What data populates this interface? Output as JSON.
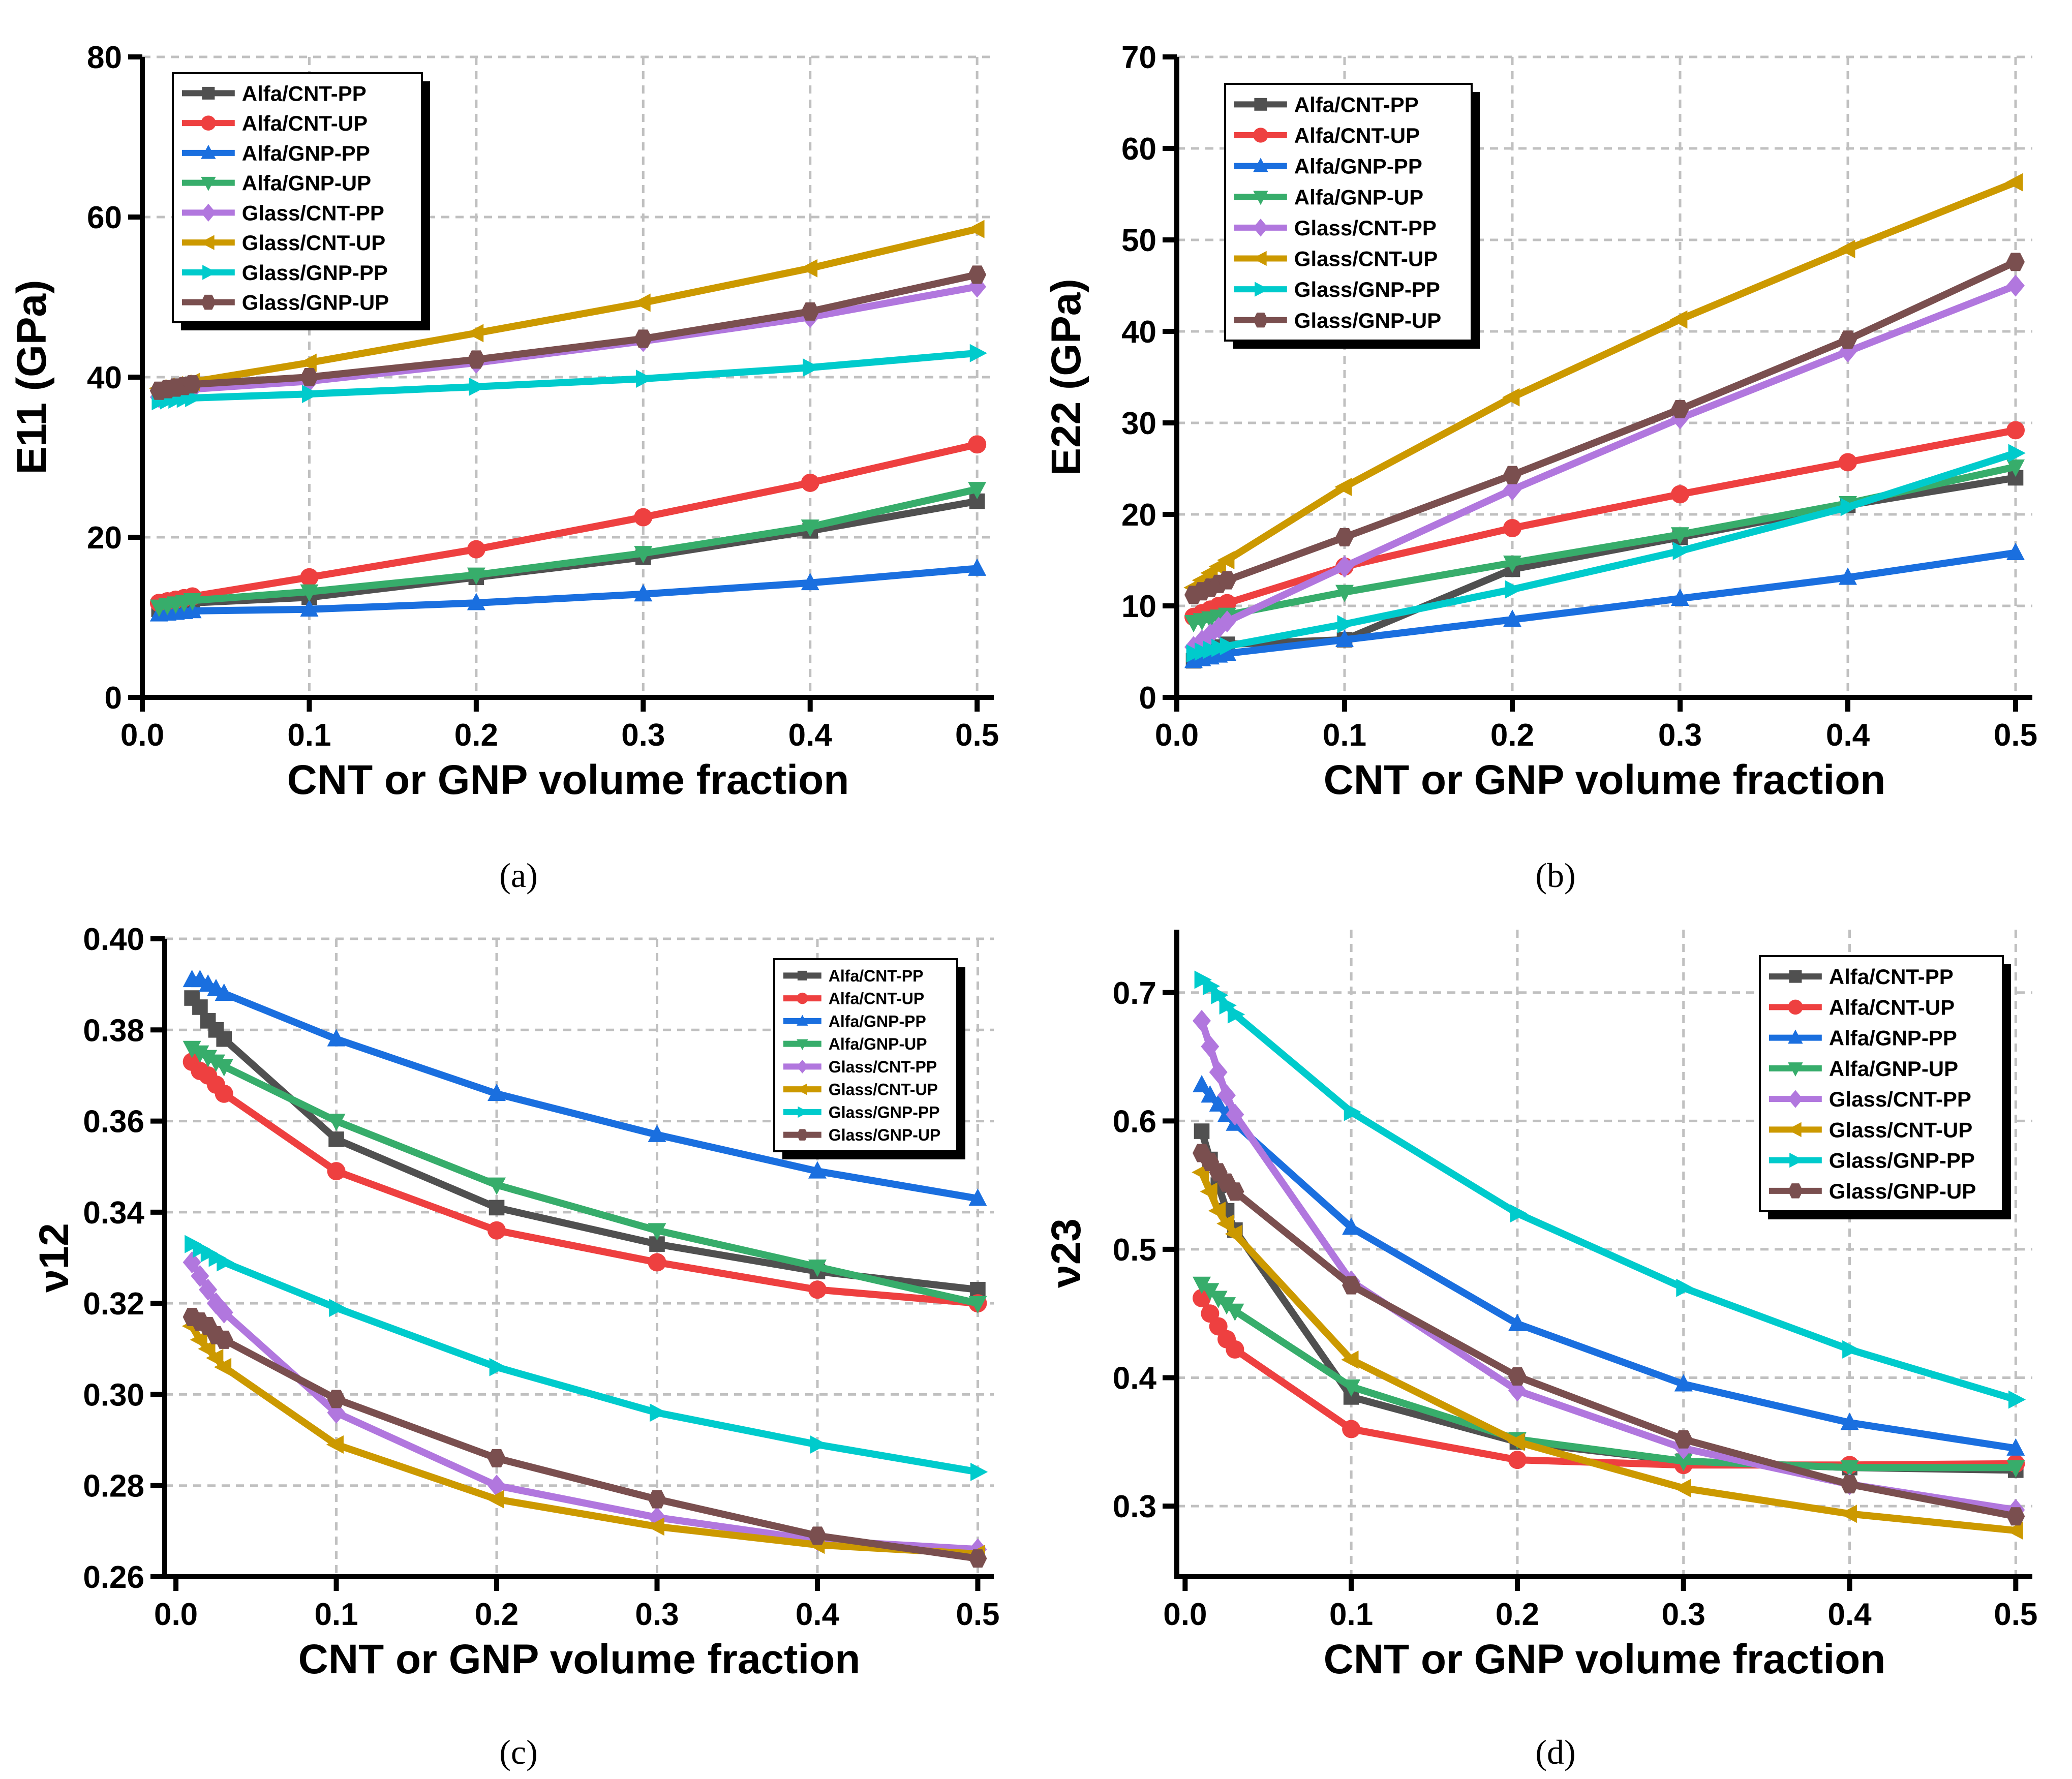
{
  "series_style": {
    "names": [
      "Alfa/CNT-PP",
      "Alfa/CNT-UP",
      "Alfa/GNP-PP",
      "Alfa/GNP-UP",
      "Glass/CNT-PP",
      "Glass/CNT-UP",
      "Glass/GNP-PP",
      "Glass/GNP-UP"
    ],
    "colors": [
      "#505050",
      "#ee4040",
      "#1a6fdf",
      "#37ad6b",
      "#b177de",
      "#cc9900",
      "#00cbcc",
      "#7a4f4f"
    ],
    "markers": [
      "square",
      "circle",
      "triangle-up",
      "triangle-down",
      "diamond",
      "triangle-left",
      "triangle-right",
      "hexagon"
    ]
  },
  "chart_data": [
    {
      "type": "line",
      "caption": "(a)",
      "xlabel": "CNT or GNP volume fraction",
      "ylabel": "E11 (GPa)",
      "xlim": [
        0,
        0.51
      ],
      "ylim": [
        0,
        80
      ],
      "grid": true,
      "legend": "top-left",
      "xticks": [
        "0.0",
        "0.1",
        "0.2",
        "0.3",
        "0.4",
        "0.5"
      ],
      "yticks": [
        "0",
        "20",
        "40",
        "60",
        "80"
      ],
      "x": [
        0.01,
        0.015,
        0.02,
        0.025,
        0.03,
        0.1,
        0.2,
        0.3,
        0.4,
        0.5
      ],
      "series": [
        {
          "name": "Alfa/CNT-PP",
          "values": [
            11,
            11.2,
            11.4,
            11.6,
            11.8,
            12.5,
            15,
            17.5,
            20.8,
            24.5
          ]
        },
        {
          "name": "Alfa/CNT-UP",
          "values": [
            11.8,
            12,
            12.2,
            12.4,
            12.6,
            15,
            18.5,
            22.5,
            26.8,
            31.6
          ]
        },
        {
          "name": "Alfa/GNP-PP",
          "values": [
            10.4,
            10.5,
            10.6,
            10.7,
            10.8,
            11,
            11.8,
            12.9,
            14.3,
            16.1
          ]
        },
        {
          "name": "Alfa/GNP-UP",
          "values": [
            11.3,
            11.5,
            11.7,
            11.9,
            12.1,
            13.2,
            15.3,
            18,
            21.3,
            26
          ]
        },
        {
          "name": "Glass/CNT-PP",
          "values": [
            37.5,
            37.8,
            38,
            38.3,
            38.5,
            39.5,
            41.8,
            44.5,
            47.5,
            51.3
          ]
        },
        {
          "name": "Glass/CNT-UP",
          "values": [
            38.6,
            38.8,
            39,
            39.2,
            39.4,
            41.8,
            45.5,
            49.3,
            53.6,
            58.5
          ]
        },
        {
          "name": "Glass/GNP-PP",
          "values": [
            37,
            37.1,
            37.2,
            37.3,
            37.4,
            37.9,
            38.8,
            39.8,
            41.2,
            43
          ]
        },
        {
          "name": "Glass/GNP-UP",
          "values": [
            38.3,
            38.5,
            38.7,
            38.9,
            39.1,
            40,
            42.2,
            44.8,
            48.2,
            52.8
          ]
        }
      ]
    },
    {
      "type": "line",
      "caption": "(b)",
      "xlabel": "CNT or GNP volume fraction",
      "ylabel": "E22 (GPa)",
      "xlim": [
        0,
        0.51
      ],
      "ylim": [
        0,
        70
      ],
      "grid": true,
      "legend": "top-left",
      "xticks": [
        "0.0",
        "0.1",
        "0.2",
        "0.3",
        "0.4",
        "0.5"
      ],
      "yticks": [
        "0",
        "10",
        "20",
        "30",
        "40",
        "50",
        "60",
        "70"
      ],
      "x": [
        0.01,
        0.015,
        0.02,
        0.025,
        0.03,
        0.1,
        0.2,
        0.3,
        0.4,
        0.5
      ],
      "series": [
        {
          "name": "Alfa/CNT-PP",
          "values": [
            4,
            4.5,
            5,
            5.5,
            5.8,
            6.3,
            14,
            17.5,
            21,
            24
          ]
        },
        {
          "name": "Alfa/CNT-UP",
          "values": [
            8.8,
            9.2,
            9.6,
            10,
            10.3,
            14.3,
            18.5,
            22.2,
            25.7,
            29.2
          ]
        },
        {
          "name": "Alfa/GNP-PP",
          "values": [
            4,
            4.2,
            4.4,
            4.6,
            4.8,
            6.3,
            8.5,
            10.8,
            13.1,
            15.8
          ]
        },
        {
          "name": "Alfa/GNP-UP",
          "values": [
            8.2,
            8.4,
            8.6,
            8.8,
            9,
            11.5,
            14.7,
            17.8,
            21.2,
            25.2
          ]
        },
        {
          "name": "Glass/CNT-PP",
          "values": [
            5.5,
            6.2,
            6.9,
            7.6,
            8.3,
            14.3,
            22.7,
            30.5,
            37.8,
            45
          ]
        },
        {
          "name": "Glass/CNT-UP",
          "values": [
            12,
            12.8,
            13.6,
            14.3,
            15,
            23,
            32.8,
            41.3,
            49,
            56.3
          ]
        },
        {
          "name": "Glass/GNP-PP",
          "values": [
            4.8,
            5,
            5.2,
            5.4,
            5.6,
            8,
            11.8,
            16,
            20.8,
            26.7
          ]
        },
        {
          "name": "Glass/GNP-UP",
          "values": [
            11.2,
            11.6,
            12,
            12.4,
            12.8,
            17.5,
            24.3,
            31.5,
            39.1,
            47.6
          ]
        }
      ]
    },
    {
      "type": "line",
      "caption": "(c)",
      "xlabel": "CNT or GNP volume fraction",
      "ylabel": "ν12",
      "xlim": [
        -0.007,
        0.51
      ],
      "ylim": [
        0.26,
        0.4
      ],
      "grid": true,
      "legend": "top-right",
      "xticks": [
        "0.0",
        "0.1",
        "0.2",
        "0.3",
        "0.4",
        "0.5"
      ],
      "yticks": [
        "0.26",
        "0.28",
        "0.30",
        "0.32",
        "0.34",
        "0.36",
        "0.38",
        "0.40"
      ],
      "x": [
        0.01,
        0.015,
        0.02,
        0.025,
        0.03,
        0.1,
        0.2,
        0.3,
        0.4,
        0.5
      ],
      "series": [
        {
          "name": "Alfa/CNT-PP",
          "values": [
            0.387,
            0.385,
            0.382,
            0.38,
            0.378,
            0.356,
            0.341,
            0.333,
            0.327,
            0.323
          ]
        },
        {
          "name": "Alfa/CNT-UP",
          "values": [
            0.373,
            0.371,
            0.37,
            0.368,
            0.366,
            0.349,
            0.336,
            0.329,
            0.323,
            0.32
          ]
        },
        {
          "name": "Alfa/GNP-PP",
          "values": [
            0.391,
            0.391,
            0.39,
            0.389,
            0.388,
            0.378,
            0.366,
            0.357,
            0.349,
            0.343
          ]
        },
        {
          "name": "Alfa/GNP-UP",
          "values": [
            0.376,
            0.375,
            0.374,
            0.373,
            0.372,
            0.36,
            0.346,
            0.336,
            0.328,
            0.32
          ]
        },
        {
          "name": "Glass/CNT-PP",
          "values": [
            0.329,
            0.326,
            0.323,
            0.32,
            0.318,
            0.296,
            0.28,
            0.273,
            0.268,
            0.266
          ]
        },
        {
          "name": "Glass/CNT-UP",
          "values": [
            0.315,
            0.312,
            0.31,
            0.308,
            0.306,
            0.289,
            0.277,
            0.271,
            0.267,
            0.265
          ]
        },
        {
          "name": "Glass/GNP-PP",
          "values": [
            0.333,
            0.332,
            0.331,
            0.33,
            0.329,
            0.319,
            0.306,
            0.296,
            0.289,
            0.283
          ]
        },
        {
          "name": "Glass/GNP-UP",
          "values": [
            0.317,
            0.316,
            0.315,
            0.313,
            0.312,
            0.299,
            0.286,
            0.277,
            0.269,
            0.264
          ]
        }
      ]
    },
    {
      "type": "line",
      "caption": "(d)",
      "xlabel": "CNT or GNP volume fraction",
      "ylabel": "ν23",
      "xlim": [
        -0.005,
        0.51
      ],
      "ylim": [
        0.245,
        0.749
      ],
      "grid": true,
      "legend": "top-right",
      "xticks": [
        "0.0",
        "0.1",
        "0.2",
        "0.3",
        "0.4",
        "0.5"
      ],
      "yticks": [
        "0.3",
        "0.4",
        "0.5",
        "0.6",
        "0.7"
      ],
      "x": [
        0.01,
        0.015,
        0.02,
        0.025,
        0.03,
        0.1,
        0.2,
        0.3,
        0.4,
        0.5
      ],
      "series": [
        {
          "name": "Alfa/CNT-PP",
          "values": [
            0.592,
            0.57,
            0.55,
            0.53,
            0.515,
            0.385,
            0.35,
            0.335,
            0.33,
            0.328
          ]
        },
        {
          "name": "Alfa/CNT-UP",
          "values": [
            0.462,
            0.45,
            0.44,
            0.43,
            0.422,
            0.36,
            0.336,
            0.332,
            0.332,
            0.333
          ]
        },
        {
          "name": "Alfa/GNP-PP",
          "values": [
            0.628,
            0.62,
            0.613,
            0.605,
            0.598,
            0.517,
            0.442,
            0.395,
            0.365,
            0.345
          ]
        },
        {
          "name": "Alfa/GNP-UP",
          "values": [
            0.473,
            0.468,
            0.462,
            0.457,
            0.452,
            0.393,
            0.352,
            0.335,
            0.33,
            0.33
          ]
        },
        {
          "name": "Glass/CNT-PP",
          "values": [
            0.678,
            0.658,
            0.638,
            0.62,
            0.605,
            0.475,
            0.39,
            0.345,
            0.317,
            0.297
          ]
        },
        {
          "name": "Glass/CNT-UP",
          "values": [
            0.56,
            0.545,
            0.53,
            0.52,
            0.512,
            0.414,
            0.35,
            0.314,
            0.294,
            0.281
          ]
        },
        {
          "name": "Glass/GNP-PP",
          "values": [
            0.71,
            0.705,
            0.698,
            0.69,
            0.683,
            0.607,
            0.528,
            0.47,
            0.422,
            0.383
          ]
        },
        {
          "name": "Glass/GNP-UP",
          "values": [
            0.575,
            0.568,
            0.56,
            0.552,
            0.545,
            0.472,
            0.401,
            0.352,
            0.317,
            0.292
          ]
        }
      ]
    }
  ]
}
